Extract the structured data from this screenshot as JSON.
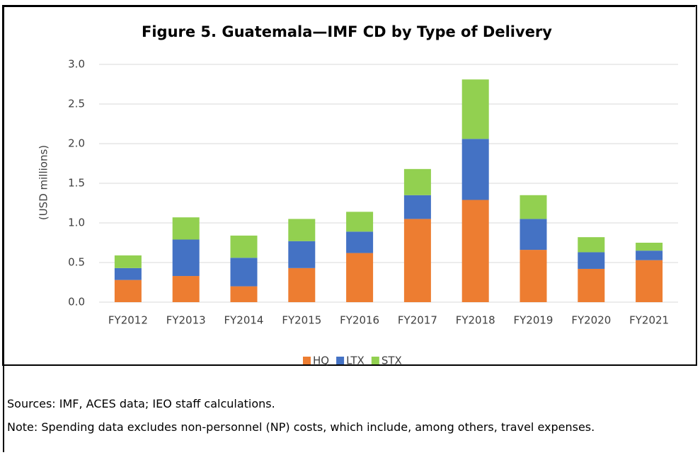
{
  "chart_data": {
    "type": "stacked_bar",
    "title": "Figure 5. Guatemala—IMF CD by Type of Delivery",
    "y_label": "(USD millions)",
    "categories": [
      "FY2012",
      "FY2013",
      "FY2014",
      "FY2015",
      "FY2016",
      "FY2017",
      "FY2018",
      "FY2019",
      "FY2020",
      "FY2021"
    ],
    "series": [
      {
        "name": "HQ",
        "color": "#ed7d31",
        "values": [
          0.28,
          0.33,
          0.2,
          0.43,
          0.62,
          1.05,
          1.29,
          0.66,
          0.42,
          0.53
        ]
      },
      {
        "name": "LTX",
        "color": "#4472c4",
        "values": [
          0.15,
          0.46,
          0.36,
          0.34,
          0.27,
          0.3,
          0.77,
          0.39,
          0.21,
          0.12
        ]
      },
      {
        "name": "STX",
        "color": "#92d050",
        "values": [
          0.16,
          0.28,
          0.28,
          0.28,
          0.25,
          0.33,
          0.75,
          0.3,
          0.19,
          0.1
        ]
      }
    ],
    "ylim": [
      0,
      3
    ],
    "yticks": [
      {
        "value": 0,
        "label": "0.0"
      },
      0.5,
      {
        "value": 1,
        "label": "1.0"
      },
      1.5,
      {
        "value": 2,
        "label": "2.0"
      },
      2.5,
      {
        "value": 3,
        "label": "3.0"
      }
    ],
    "grid": true,
    "legend": "bottom",
    "sources": "Sources: IMF, ACES data; IEO staff calculations.",
    "note": "Note: Spending data excludes non-personnel (NP) costs, which include, among others, travel expenses."
  }
}
